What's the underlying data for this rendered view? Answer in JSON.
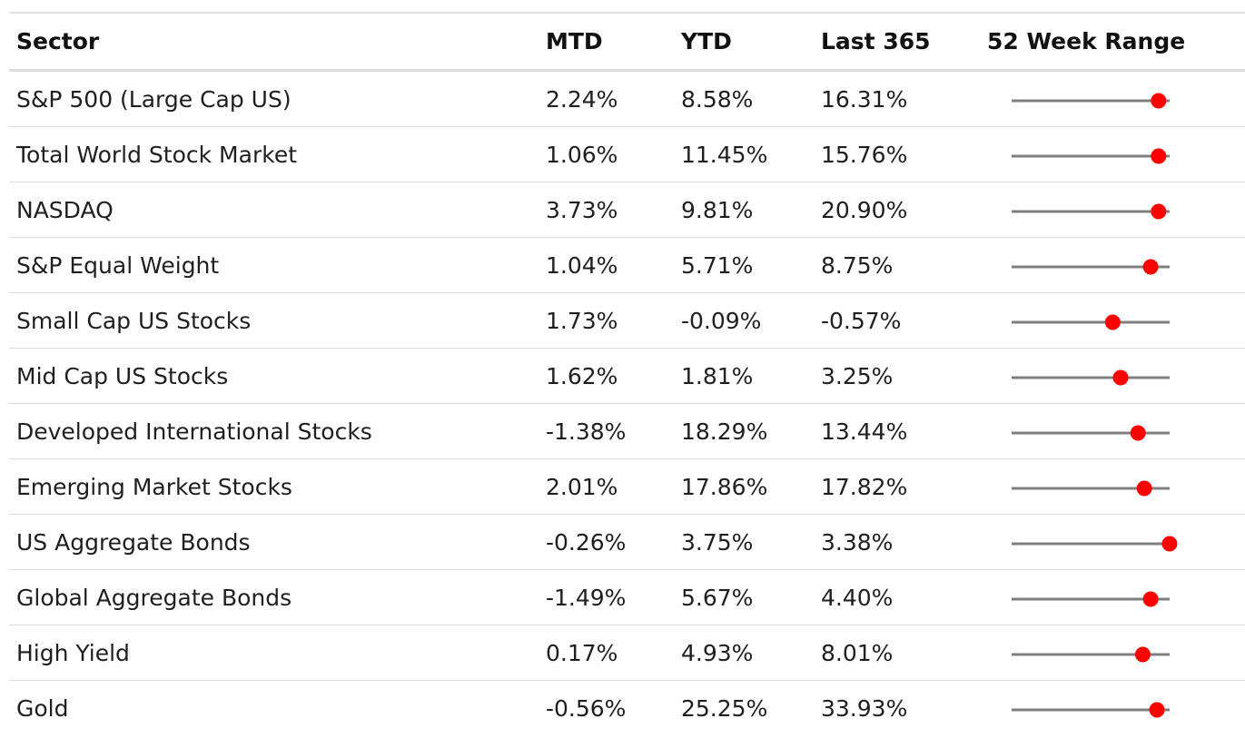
{
  "headers": {
    "sector": "Sector",
    "mtd": "MTD",
    "ytd": "YTD",
    "last365": "Last 365",
    "range": "52 Week Range"
  },
  "colors": {
    "range_line": "#7f7f7f",
    "range_dot": "#ff0000"
  },
  "rows": [
    {
      "sector": "S&P 500 (Large Cap US)",
      "mtd": "2.24%",
      "ytd": "8.58%",
      "last365": "16.31%",
      "range_position": 0.93
    },
    {
      "sector": "Total World Stock Market",
      "mtd": "1.06%",
      "ytd": "11.45%",
      "last365": "15.76%",
      "range_position": 0.93
    },
    {
      "sector": "NASDAQ",
      "mtd": "3.73%",
      "ytd": "9.81%",
      "last365": "20.90%",
      "range_position": 0.93
    },
    {
      "sector": "S&P Equal Weight",
      "mtd": "1.04%",
      "ytd": "5.71%",
      "last365": "8.75%",
      "range_position": 0.88
    },
    {
      "sector": "Small Cap US Stocks",
      "mtd": "1.73%",
      "ytd": "-0.09%",
      "last365": "-0.57%",
      "range_position": 0.64
    },
    {
      "sector": "Mid Cap US Stocks",
      "mtd": "1.62%",
      "ytd": "1.81%",
      "last365": "3.25%",
      "range_position": 0.69
    },
    {
      "sector": "Developed International Stocks",
      "mtd": "-1.38%",
      "ytd": "18.29%",
      "last365": "13.44%",
      "range_position": 0.8
    },
    {
      "sector": "Emerging Market Stocks",
      "mtd": "2.01%",
      "ytd": "17.86%",
      "last365": "17.82%",
      "range_position": 0.84
    },
    {
      "sector": "US Aggregate Bonds",
      "mtd": "-0.26%",
      "ytd": "3.75%",
      "last365": "3.38%",
      "range_position": 1.0
    },
    {
      "sector": "Global Aggregate Bonds",
      "mtd": "-1.49%",
      "ytd": "5.67%",
      "last365": "4.40%",
      "range_position": 0.88
    },
    {
      "sector": "High Yield",
      "mtd": "0.17%",
      "ytd": "4.93%",
      "last365": "8.01%",
      "range_position": 0.83
    },
    {
      "sector": "Gold",
      "mtd": "-0.56%",
      "ytd": "25.25%",
      "last365": "33.93%",
      "range_position": 0.92
    }
  ],
  "chart_data": {
    "type": "table",
    "columns": [
      "Sector",
      "MTD",
      "YTD",
      "Last 365",
      "52 Week Range"
    ],
    "series": [
      {
        "name": "MTD",
        "values": [
          2.24,
          1.06,
          3.73,
          1.04,
          1.73,
          1.62,
          -1.38,
          2.01,
          -0.26,
          -1.49,
          0.17,
          -0.56
        ]
      },
      {
        "name": "YTD",
        "values": [
          8.58,
          11.45,
          9.81,
          5.71,
          -0.09,
          1.81,
          18.29,
          17.86,
          3.75,
          5.67,
          4.93,
          25.25
        ]
      },
      {
        "name": "Last 365",
        "values": [
          16.31,
          15.76,
          20.9,
          8.75,
          -0.57,
          3.25,
          13.44,
          17.82,
          3.38,
          4.4,
          8.01,
          33.93
        ]
      },
      {
        "name": "52 Week Range",
        "values": [
          0.93,
          0.93,
          0.93,
          0.88,
          0.64,
          0.69,
          0.8,
          0.84,
          1.0,
          0.88,
          0.83,
          0.92
        ]
      }
    ],
    "categories": [
      "S&P 500 (Large Cap US)",
      "Total World Stock Market",
      "NASDAQ",
      "S&P Equal Weight",
      "Small Cap US Stocks",
      "Mid Cap US Stocks",
      "Developed International Stocks",
      "Emerging Market Stocks",
      "US Aggregate Bonds",
      "Global Aggregate Bonds",
      "High Yield",
      "Gold"
    ]
  }
}
